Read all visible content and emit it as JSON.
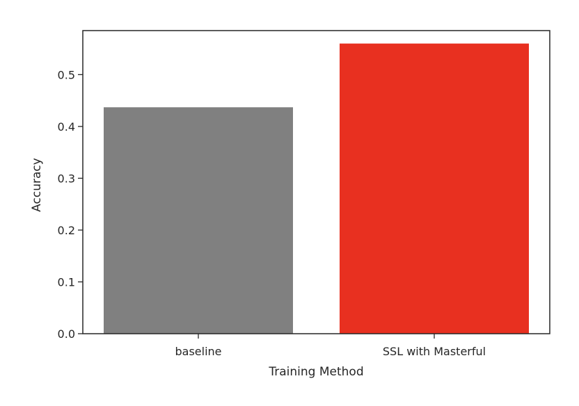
{
  "chart_data": {
    "type": "bar",
    "categories": [
      "baseline",
      "SSL with Masterful"
    ],
    "values": [
      0.437,
      0.56
    ],
    "colors": [
      "#808080",
      "#e83020"
    ],
    "title": "",
    "xlabel": "Training Method",
    "ylabel": "Accuracy",
    "ylim": [
      0,
      0.585
    ],
    "yticks": [
      0.0,
      0.1,
      0.2,
      0.3,
      0.4,
      0.5
    ],
    "ytick_labels": [
      "0.0",
      "0.1",
      "0.2",
      "0.3",
      "0.4",
      "0.5"
    ],
    "grid": false,
    "legend": "none"
  }
}
